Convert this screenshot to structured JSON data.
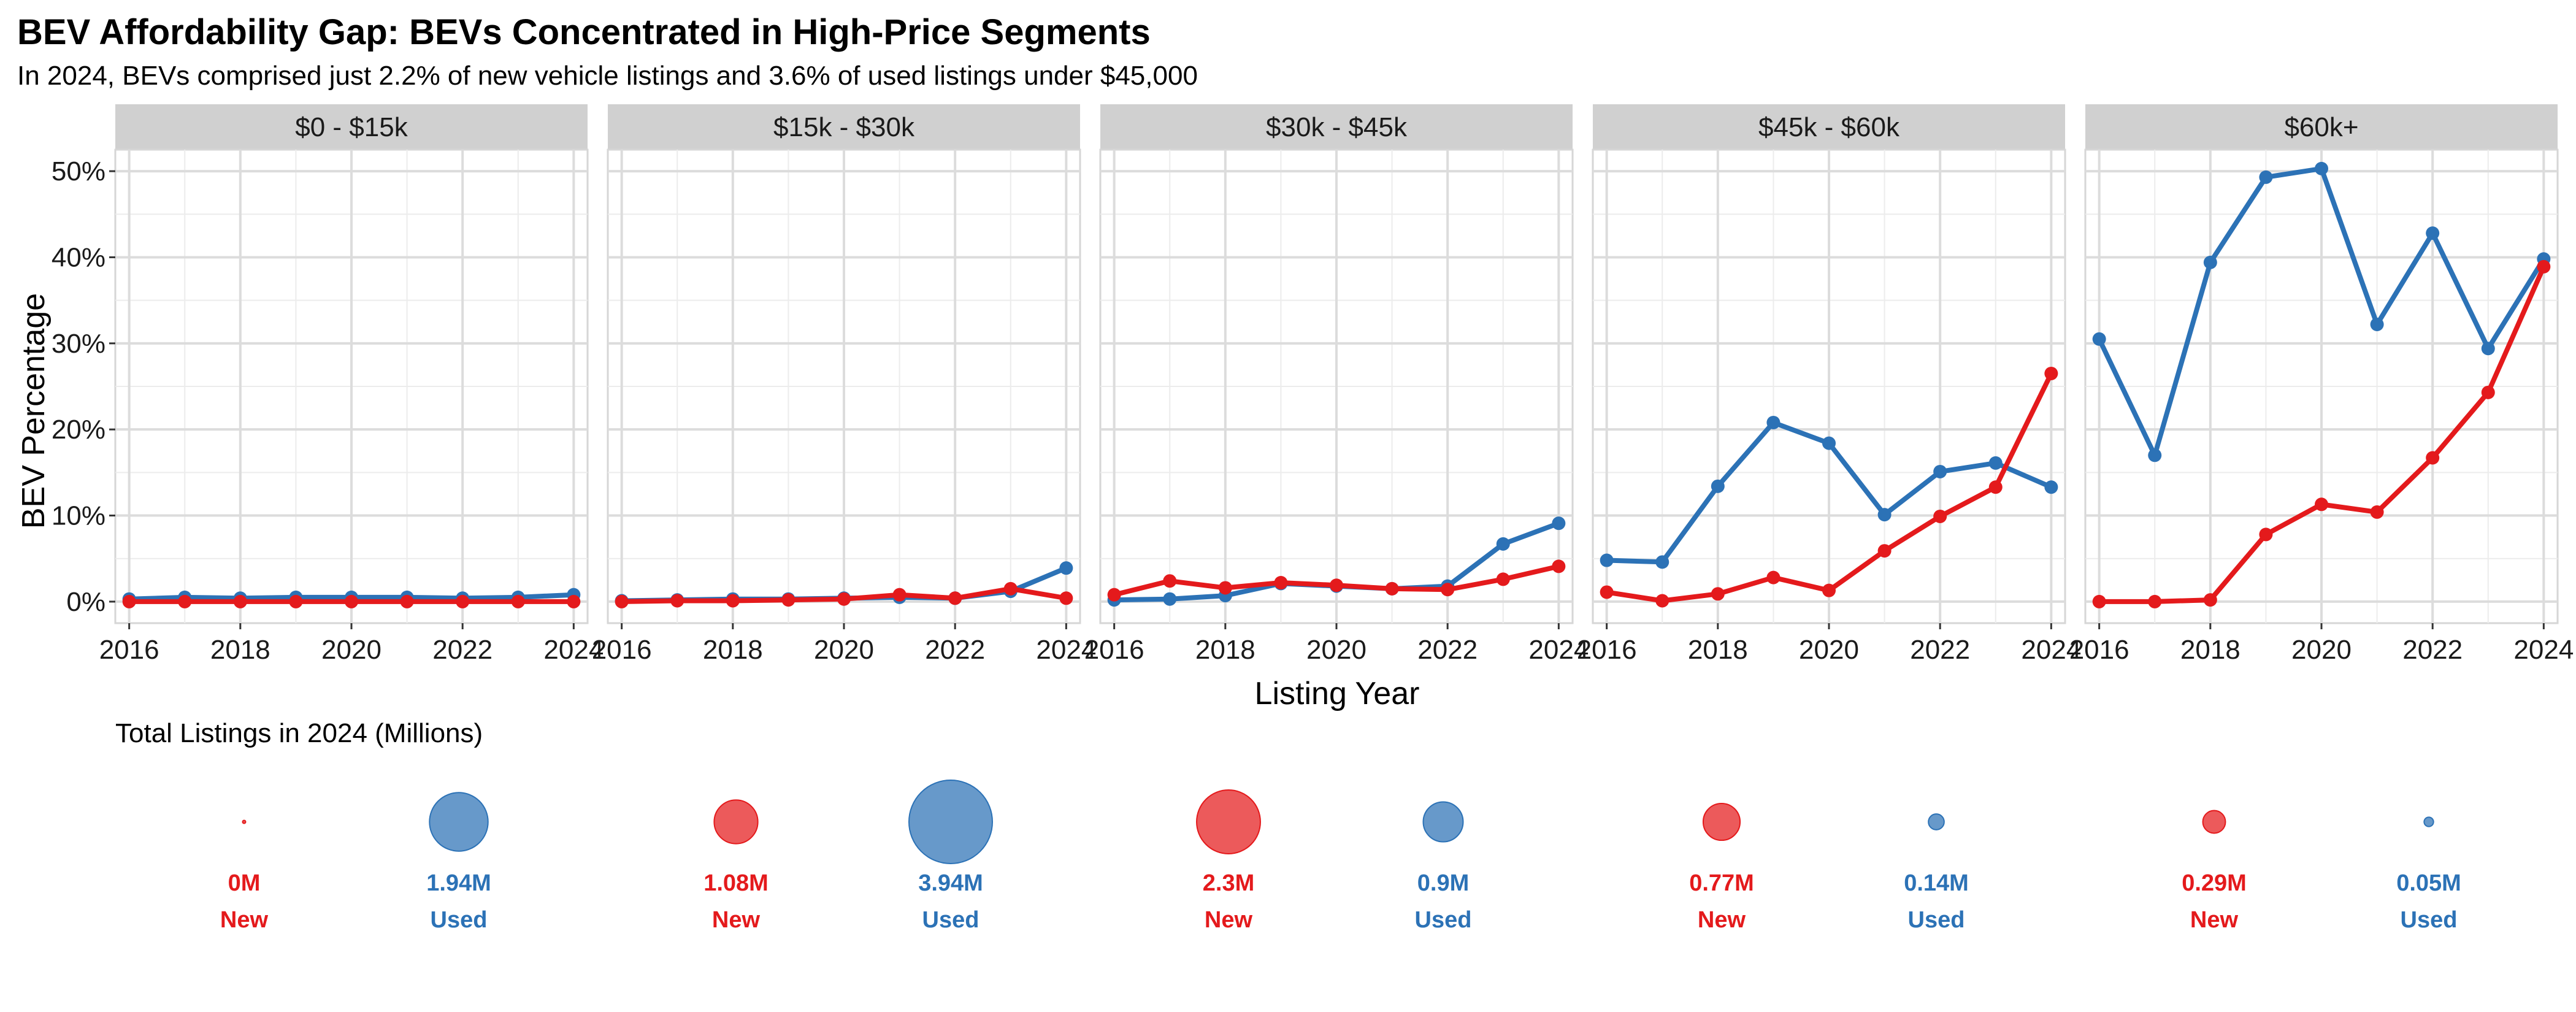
{
  "title": "BEV Affordability Gap: BEVs Concentrated in High-Price Segments",
  "subtitle": "In 2024, BEVs comprised just 2.2% of new vehicle listings and 3.6% of used listings under $45,000",
  "colors": {
    "new": "#e41a1c",
    "used": "#2c72b6",
    "strip": "#d0d0d0",
    "grid": "#dcdcdc",
    "border": "#d6d6d6"
  },
  "chart_data": {
    "type": "line",
    "xlabel": "Listing Year",
    "ylabel": "BEV Percentage",
    "ylim": [
      -2.5,
      52.5
    ],
    "xlim": [
      2015.75,
      2024.25
    ],
    "x": [
      2016,
      2017,
      2018,
      2019,
      2020,
      2021,
      2022,
      2023,
      2024
    ],
    "x_ticks": [
      2016,
      2018,
      2020,
      2022,
      2024
    ],
    "y_ticks": [
      0,
      10,
      20,
      30,
      40,
      50
    ],
    "y_tick_labels": [
      "0%",
      "10%",
      "20%",
      "30%",
      "40%",
      "50%"
    ],
    "grid": true,
    "series_names": [
      "New",
      "Used"
    ],
    "panels": [
      {
        "label": "$0 - $15k",
        "series": [
          {
            "name": "New",
            "values": [
              0.0,
              0.0,
              0.0,
              0.0,
              0.0,
              0.0,
              0.0,
              0.0,
              0.0
            ]
          },
          {
            "name": "Used",
            "values": [
              0.3,
              0.5,
              0.4,
              0.5,
              0.5,
              0.5,
              0.4,
              0.5,
              0.8
            ]
          }
        ]
      },
      {
        "label": "$15k - $30k",
        "series": [
          {
            "name": "New",
            "values": [
              0.0,
              0.1,
              0.1,
              0.2,
              0.3,
              0.8,
              0.4,
              1.5,
              0.4
            ]
          },
          {
            "name": "Used",
            "values": [
              0.1,
              0.2,
              0.3,
              0.3,
              0.4,
              0.5,
              0.4,
              1.2,
              3.9
            ]
          }
        ]
      },
      {
        "label": "$30k - $45k",
        "series": [
          {
            "name": "New",
            "values": [
              0.8,
              2.4,
              1.6,
              2.2,
              1.9,
              1.5,
              1.4,
              2.6,
              4.1
            ]
          },
          {
            "name": "Used",
            "values": [
              0.2,
              0.3,
              0.7,
              2.1,
              1.8,
              1.5,
              1.8,
              6.7,
              9.1
            ]
          }
        ]
      },
      {
        "label": "$45k - $60k",
        "series": [
          {
            "name": "New",
            "values": [
              1.1,
              0.1,
              0.9,
              2.8,
              1.3,
              5.9,
              9.9,
              13.3,
              26.5
            ]
          },
          {
            "name": "Used",
            "values": [
              4.8,
              4.6,
              13.4,
              20.8,
              18.4,
              10.1,
              15.1,
              16.1,
              13.3
            ]
          }
        ]
      },
      {
        "label": "$60k+",
        "series": [
          {
            "name": "New",
            "values": [
              0.0,
              0.0,
              0.2,
              7.8,
              11.3,
              10.4,
              16.7,
              24.3,
              38.9
            ]
          },
          {
            "name": "Used",
            "values": [
              30.5,
              17.0,
              39.4,
              49.3,
              50.3,
              32.2,
              42.8,
              29.4,
              39.8
            ]
          }
        ]
      }
    ],
    "bubbles": {
      "title": "Total Listings in 2024 (Millions)",
      "groups": [
        {
          "new": {
            "value": 0.003,
            "label": "0M",
            "type": "New"
          },
          "used": {
            "value": 1.94,
            "label": "1.94M",
            "type": "Used"
          }
        },
        {
          "new": {
            "value": 1.08,
            "label": "1.08M",
            "type": "New"
          },
          "used": {
            "value": 3.94,
            "label": "3.94M",
            "type": "Used"
          }
        },
        {
          "new": {
            "value": 2.3,
            "label": "2.3M",
            "type": "New"
          },
          "used": {
            "value": 0.9,
            "label": "0.9M",
            "type": "Used"
          }
        },
        {
          "new": {
            "value": 0.77,
            "label": "0.77M",
            "type": "New"
          },
          "used": {
            "value": 0.14,
            "label": "0.14M",
            "type": "Used"
          }
        },
        {
          "new": {
            "value": 0.29,
            "label": "0.29M",
            "type": "New"
          },
          "used": {
            "value": 0.05,
            "label": "0.05M",
            "type": "Used"
          }
        }
      ]
    }
  }
}
